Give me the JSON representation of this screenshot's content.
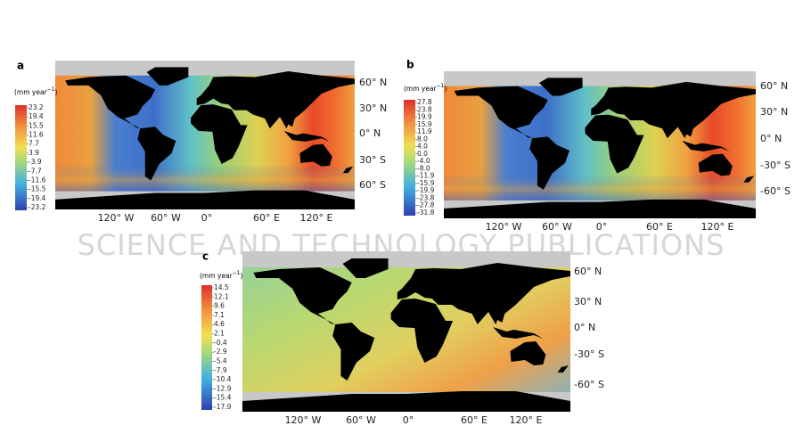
{
  "watermark": "SCIENCE AND TECHNOLOGY PUBLICATIONS",
  "panels": [
    {
      "label": "a",
      "unit": "(mm year",
      "unit_sup": "−1",
      "colorbar": [
        "23.2",
        "19.4",
        "15.5",
        "11.6",
        "7.7",
        "3.9",
        "-3.9",
        "-7.7",
        "-11.6",
        "-15.5",
        "-19.4",
        "-23.2"
      ],
      "lat_labels": [
        "60° N",
        "30° N",
        "0° N",
        "30° S",
        "60° S"
      ],
      "lon_labels": [
        "120° W",
        "60° W",
        "0°",
        "60° E",
        "120° E"
      ]
    },
    {
      "label": "b",
      "unit": "(mm year",
      "unit_sup": "−1",
      "colorbar": [
        "27.8",
        "23.8",
        "19.9",
        "15.9",
        "11.9",
        "8.0",
        "4.0",
        "0.0",
        "-4.0",
        "-8.0",
        "-11.9",
        "-15.9",
        "-19.9",
        "-23.8",
        "-27.8",
        "-31.8"
      ],
      "lat_labels": [
        "60° N",
        "30° N",
        "0° N",
        "-30° S",
        "-60° S"
      ],
      "lon_labels": [
        "120° W",
        "60° W",
        "0°",
        "60° E",
        "120° E"
      ]
    },
    {
      "label": "c",
      "unit": "(mm year",
      "unit_sup": "−1",
      "colorbar": [
        "14.5",
        "12.1",
        "9.6",
        "7.1",
        "4.6",
        "2.1",
        "-0.4",
        "-2.9",
        "-5.4",
        "-7.9",
        "-10.4",
        "-12.9",
        "-15.4",
        "-17.9"
      ],
      "lat_labels": [
        "60° N",
        "30° N",
        "0° N",
        "-30° S",
        "-60° S"
      ],
      "lon_labels": [
        "120° W",
        "60° W",
        "0°",
        "60° E",
        "120° E"
      ]
    }
  ]
}
